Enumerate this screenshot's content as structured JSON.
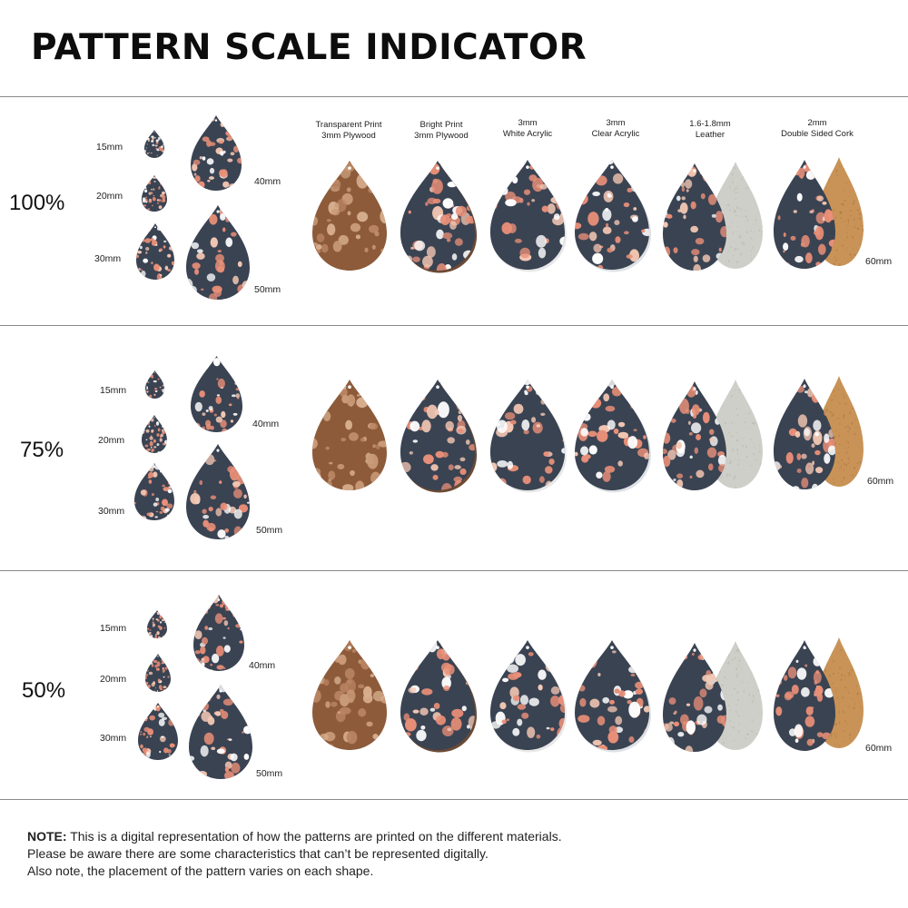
{
  "title": "PATTERN SCALE INDICATOR",
  "materials": [
    {
      "line1": "Transparent Print",
      "line2": "3mm Plywood"
    },
    {
      "line1": "Bright Print",
      "line2": "3mm Plywood"
    },
    {
      "line1": "3mm",
      "line2": "White Acrylic"
    },
    {
      "line1": "3mm",
      "line2": "Clear Acrylic"
    },
    {
      "line1": "1.6-1.8mm",
      "line2": "Leather"
    },
    {
      "line1": "2mm",
      "line2": "Double Sided Cork"
    }
  ],
  "sections": [
    {
      "scale": "100%"
    },
    {
      "scale": "75%"
    },
    {
      "scale": "50%"
    }
  ],
  "sizes": {
    "s15": "15mm",
    "s20": "20mm",
    "s30": "30mm",
    "s40": "40mm",
    "s50": "50mm",
    "s60": "60mm"
  },
  "note": {
    "label": "NOTE:",
    "line1": " This is a digital representation of how the patterns are printed on the different materials.",
    "line2": "Please be aware there are some characteristics that can’t be represented digitally.",
    "line3": "Also note, the placement of the pattern varies on each shape."
  },
  "colors": {
    "navy": "#3a4352",
    "coral": "#e98f78",
    "peach": "#f3c7b3",
    "white": "#ffffff",
    "wood": "#8d5b3a",
    "woodPattern": "#c99a78",
    "leather": "#cfcfc9",
    "cork": "#c99357"
  }
}
